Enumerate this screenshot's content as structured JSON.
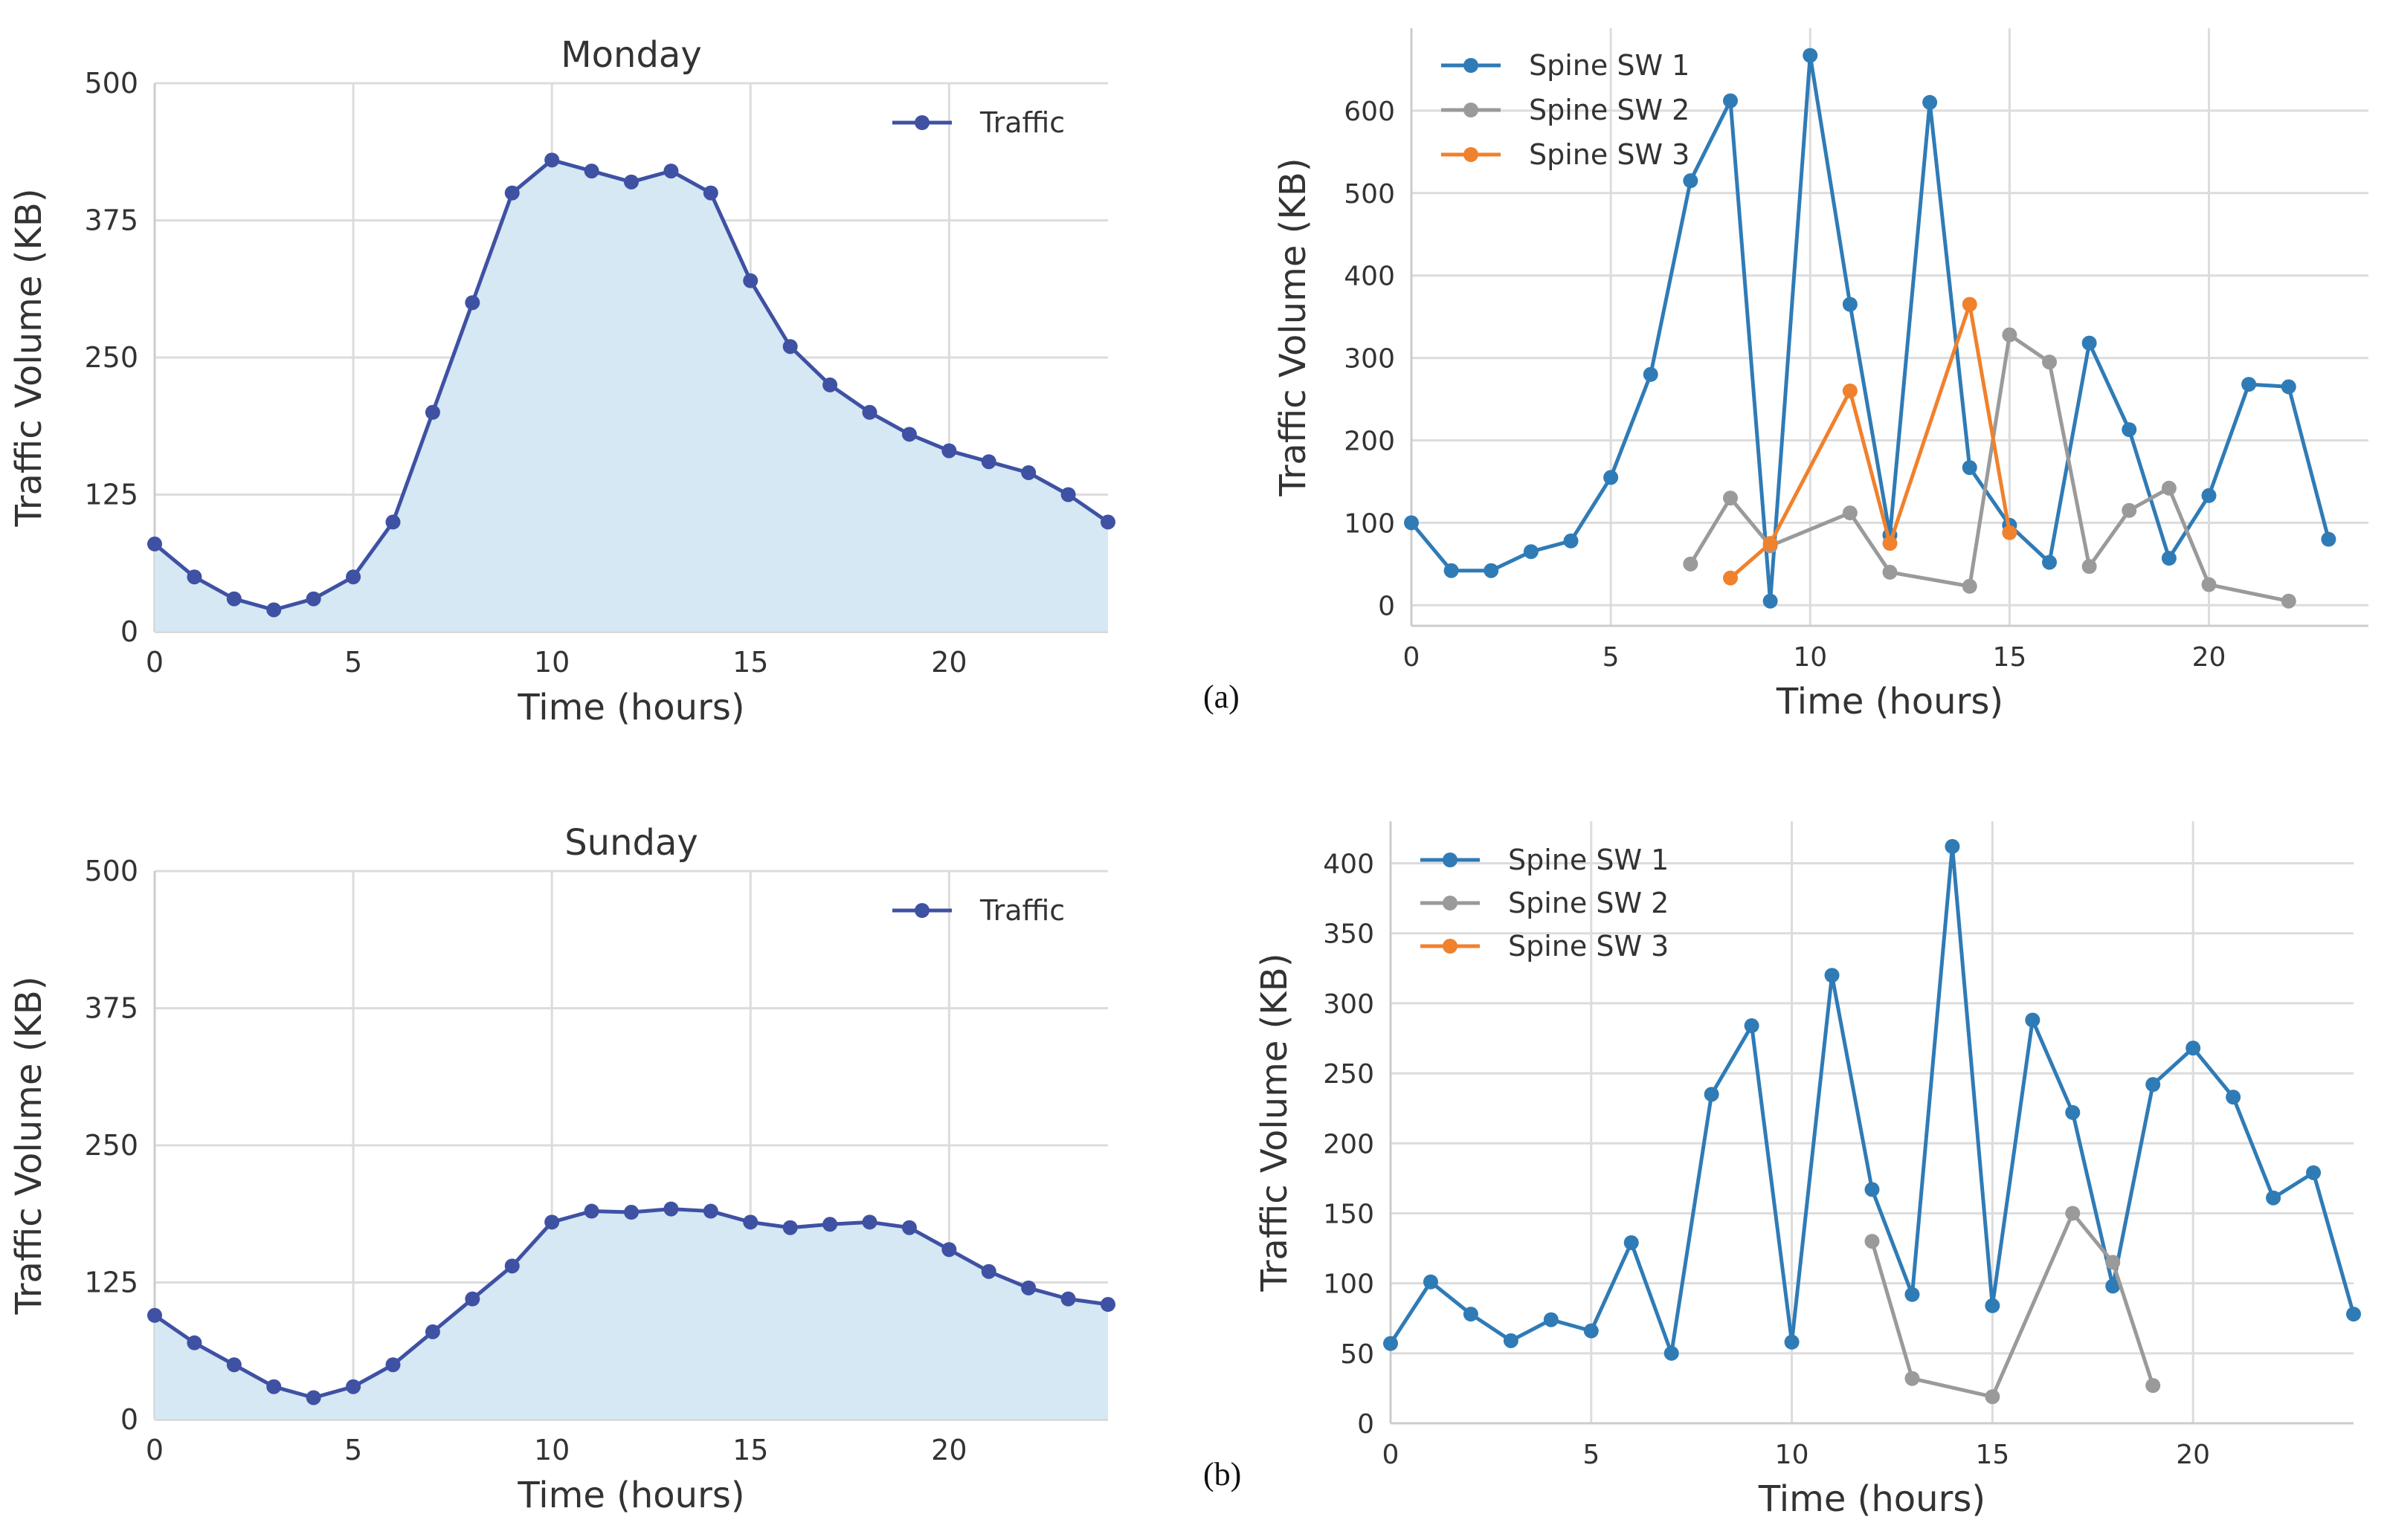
{
  "colors": {
    "traffic_line": "#3f51a3",
    "traffic_fill": "#d5e8f3",
    "spine1": "#2f7bb6",
    "spine2": "#9a9a9a",
    "spine3": "#f0812d"
  },
  "panel_labels": {
    "a": "(a)",
    "b": "(b)"
  },
  "chart_data": [
    {
      "id": "monday",
      "type": "area",
      "title": "Monday",
      "xlabel": "Time (hours)",
      "ylabel": "Traffic Volume (KB)",
      "xlim": [
        0,
        24
      ],
      "ylim": [
        0,
        500
      ],
      "xticks": [
        0,
        5,
        10,
        15,
        20
      ],
      "yticks": [
        0,
        125,
        250,
        375,
        500
      ],
      "legend": "top-right",
      "series": [
        {
          "name": "Traffic",
          "color_key": "traffic_line",
          "x": [
            0,
            1,
            2,
            3,
            4,
            5,
            6,
            7,
            8,
            9,
            10,
            11,
            12,
            13,
            14,
            15,
            16,
            17,
            18,
            19,
            20,
            21,
            22,
            23,
            24
          ],
          "values": [
            80,
            50,
            30,
            20,
            30,
            50,
            100,
            200,
            300,
            400,
            430,
            420,
            410,
            420,
            400,
            320,
            260,
            225,
            200,
            180,
            165,
            155,
            145,
            125,
            100
          ]
        }
      ]
    },
    {
      "id": "spine_a",
      "type": "line",
      "title": "",
      "xlabel": "Time (hours)",
      "ylabel": "Traffic Volume (KB)",
      "xlim": [
        0,
        24
      ],
      "ylim": [
        -25,
        700
      ],
      "xticks": [
        0,
        5,
        10,
        15,
        20
      ],
      "yticks": [
        0,
        100,
        200,
        300,
        400,
        500,
        600
      ],
      "legend": "top-left",
      "series": [
        {
          "name": "Spine SW 1",
          "color_key": "spine1",
          "x": [
            0,
            1,
            2,
            3,
            4,
            5,
            6,
            7,
            8,
            9,
            10,
            11,
            12,
            13,
            14,
            15,
            16,
            17,
            18,
            19,
            20,
            21,
            22,
            23
          ],
          "values": [
            100,
            42,
            42,
            65,
            78,
            155,
            280,
            515,
            612,
            5,
            667,
            365,
            85,
            610,
            167,
            97,
            52,
            318,
            213,
            57,
            133,
            268,
            265,
            80
          ]
        },
        {
          "name": "Spine SW 2",
          "color_key": "spine2",
          "x": [
            7,
            8,
            9,
            11,
            12,
            14,
            15,
            16,
            17,
            18,
            19,
            20,
            22
          ],
          "values": [
            50,
            130,
            72,
            112,
            40,
            23,
            328,
            295,
            47,
            115,
            142,
            25,
            5
          ]
        },
        {
          "name": "Spine SW 3",
          "color_key": "spine3",
          "x": [
            8,
            9,
            11,
            12,
            14,
            15
          ],
          "values": [
            33,
            75,
            260,
            75,
            365,
            88
          ]
        }
      ]
    },
    {
      "id": "sunday",
      "type": "area",
      "title": "Sunday",
      "xlabel": "Time (hours)",
      "ylabel": "Traffic Volume (KB)",
      "xlim": [
        0,
        24
      ],
      "ylim": [
        0,
        500
      ],
      "xticks": [
        0,
        5,
        10,
        15,
        20
      ],
      "yticks": [
        0,
        125,
        250,
        375,
        500
      ],
      "legend": "top-right",
      "series": [
        {
          "name": "Traffic",
          "color_key": "traffic_line",
          "x": [
            0,
            1,
            2,
            3,
            4,
            5,
            6,
            7,
            8,
            9,
            10,
            11,
            12,
            13,
            14,
            15,
            16,
            17,
            18,
            19,
            20,
            21,
            22,
            23,
            24
          ],
          "values": [
            95,
            70,
            50,
            30,
            20,
            30,
            50,
            80,
            110,
            140,
            180,
            190,
            189,
            192,
            190,
            180,
            175,
            178,
            180,
            175,
            155,
            135,
            120,
            110,
            105
          ]
        }
      ]
    },
    {
      "id": "spine_b",
      "type": "line",
      "title": "",
      "xlabel": "Time (hours)",
      "ylabel": "Traffic Volume (KB)",
      "xlim": [
        0,
        24
      ],
      "ylim": [
        0,
        430
      ],
      "xticks": [
        0,
        5,
        10,
        15,
        20
      ],
      "yticks": [
        0,
        50,
        100,
        150,
        200,
        250,
        300,
        350,
        400
      ],
      "legend": "top-left",
      "series": [
        {
          "name": "Spine SW 1",
          "color_key": "spine1",
          "x": [
            0,
            1,
            2,
            3,
            4,
            5,
            6,
            7,
            8,
            9,
            10,
            11,
            12,
            13,
            14,
            15,
            16,
            17,
            18,
            19,
            20,
            21,
            22,
            23,
            24
          ],
          "values": [
            57,
            101,
            78,
            59,
            74,
            66,
            129,
            50,
            235,
            284,
            58,
            320,
            167,
            92,
            412,
            84,
            288,
            222,
            98,
            242,
            268,
            233,
            161,
            179,
            78
          ]
        },
        {
          "name": "Spine SW 2",
          "color_key": "spine2",
          "x": [
            12,
            13,
            15,
            17,
            18,
            19
          ],
          "values": [
            130,
            32,
            19,
            150,
            115,
            27
          ]
        },
        {
          "name": "Spine SW 3",
          "color_key": "spine3",
          "x": [],
          "values": []
        }
      ]
    }
  ]
}
